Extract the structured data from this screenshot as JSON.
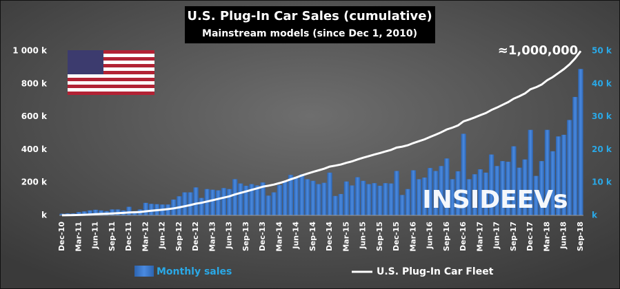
{
  "chart_data": {
    "type": "bar-line",
    "title": "U.S. Plug-In Car Sales (cumulative)",
    "subtitle": "Mainstream models (since Dec 1, 2010)",
    "annotation": "≈1,000,000",
    "watermark": "INSIDEEVs",
    "categories": [
      "Dec-10",
      null,
      null,
      "Mar-11",
      null,
      null,
      "Jun-11",
      null,
      null,
      "Sep-11",
      null,
      null,
      "Dec-11",
      null,
      null,
      "Mar-12",
      null,
      null,
      "Jun-12",
      null,
      null,
      "Sep-12",
      null,
      null,
      "Dec-12",
      null,
      null,
      "Mar-13",
      null,
      null,
      "Jun-13",
      null,
      null,
      "Sep-13",
      null,
      null,
      "Dec-13",
      null,
      null,
      "Mar-14",
      null,
      null,
      "Jun-14",
      null,
      null,
      "Sep-14",
      null,
      null,
      "Dec-14",
      null,
      null,
      "Mar-15",
      null,
      null,
      "Jun-15",
      null,
      null,
      "Sep-15",
      null,
      null,
      "Dec-15",
      null,
      null,
      "Mar-16",
      null,
      null,
      "Jun-16",
      null,
      null,
      "Sep-16",
      null,
      null,
      "Dec-16",
      null,
      null,
      "Mar-17",
      null,
      null,
      "Jun-17",
      null,
      null,
      "Sep-17",
      null,
      null,
      "Dec-17",
      null,
      null,
      "Mar-18",
      null,
      null,
      "Jun-18",
      null,
      null,
      "Sep-18"
    ],
    "series": [
      {
        "name": "Monthly sales",
        "color": "#3b7bd0",
        "axis": "y2",
        "values": [
          500,
          600,
          600,
          1000,
          1200,
          1500,
          1700,
          1500,
          1300,
          1800,
          1800,
          1500,
          2600,
          1300,
          1800,
          3800,
          3500,
          3400,
          3300,
          3300,
          4800,
          5800,
          7000,
          7000,
          8500,
          5300,
          8000,
          7800,
          7600,
          8300,
          8000,
          11000,
          9700,
          9000,
          9500,
          9100,
          10000,
          6000,
          7000,
          9200,
          10200,
          12300,
          11300,
          12500,
          11000,
          10500,
          9500,
          9900,
          13000,
          5900,
          6500,
          10300,
          9100,
          11600,
          10500,
          9500,
          9800,
          9000,
          9800,
          9700,
          13500,
          6200,
          8000,
          13700,
          11000,
          11500,
          14400,
          13500,
          15000,
          17300,
          11000,
          13400,
          24800,
          11000,
          12500,
          14000,
          13000,
          18500,
          15000,
          16500,
          16300,
          21000,
          14500,
          17000,
          26000,
          12000,
          16500,
          26000,
          19500,
          24000,
          24500,
          29000,
          36000,
          44500
        ]
      },
      {
        "name": "U.S. Plug-In Car Fleet",
        "color": "#ffffff",
        "values": [
          500,
          1100,
          1700,
          2700,
          3900,
          5400,
          7100,
          8600,
          9900,
          11700,
          13500,
          15000,
          17600,
          18900,
          20700,
          24500,
          28000,
          31400,
          34700,
          38000,
          42800,
          48600,
          55600,
          62600,
          71100,
          76400,
          84400,
          92200,
          99800,
          108100,
          116100,
          127100,
          136800,
          145800,
          155300,
          164400,
          174400,
          180400,
          187400,
          196600,
          206800,
          219100,
          230400,
          242900,
          253900,
          264400,
          273900,
          283800,
          296800,
          302700,
          309200,
          319500,
          328600,
          340200,
          350700,
          360200,
          370000,
          379000,
          388800,
          398500,
          412000,
          418200,
          426200,
          439900,
          450900,
          462400,
          476800,
          490300,
          505300,
          522600,
          533600,
          547000,
          571800,
          582800,
          595300,
          609300,
          622300,
          640800,
          655800,
          672300,
          688600,
          709600,
          724100,
          741100,
          767100,
          779100,
          795600,
          821600,
          841100,
          865100,
          889600,
          918600,
          954600,
          999100
        ]
      }
    ],
    "ylim": [
      0,
      1000000
    ],
    "yticks": [
      {
        "value": 0,
        "label": "k"
      },
      {
        "value": 200000,
        "label": "200 k"
      },
      {
        "value": 400000,
        "label": "400 k"
      },
      {
        "value": 600000,
        "label": "600 k"
      },
      {
        "value": 800000,
        "label": "800 k"
      },
      {
        "value": 1000000,
        "label": "1 000 k"
      }
    ],
    "y2lim": [
      0,
      50000
    ],
    "y2ticks": [
      {
        "value": 0,
        "label": "k"
      },
      {
        "value": 10000,
        "label": "10 k"
      },
      {
        "value": 20000,
        "label": "20 k"
      },
      {
        "value": 30000,
        "label": "30 k"
      },
      {
        "value": 40000,
        "label": "40 k"
      },
      {
        "value": 50000,
        "label": "50 k"
      }
    ],
    "y2color": "#2aa8e6"
  }
}
